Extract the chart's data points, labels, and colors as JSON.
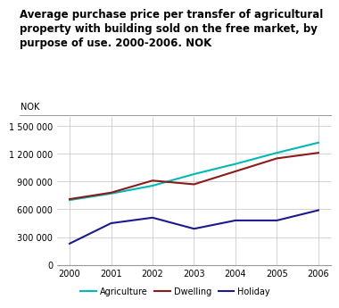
{
  "title": "Average purchase price per transfer of agricultural\nproperty with building sold on the free market, by\npurpose of use. 2000-2006. NOK",
  "ylabel": "NOK",
  "years": [
    2000,
    2001,
    2002,
    2003,
    2004,
    2005,
    2006
  ],
  "agriculture": [
    700000,
    770000,
    855000,
    980000,
    1090000,
    1210000,
    1320000
  ],
  "dwelling": [
    710000,
    780000,
    910000,
    870000,
    1010000,
    1150000,
    1210000
  ],
  "holiday": [
    230000,
    450000,
    510000,
    390000,
    480000,
    480000,
    590000
  ],
  "agriculture_color": "#00B8B8",
  "dwelling_color": "#8B1A1A",
  "holiday_color": "#1A1A8B",
  "ylim": [
    0,
    1600000
  ],
  "yticks": [
    0,
    300000,
    600000,
    900000,
    1200000,
    1500000
  ],
  "ytick_labels": [
    "0",
    "300 000",
    "600 000",
    "900 000",
    "1 200 000",
    "1 500 000"
  ],
  "background_color": "#ffffff",
  "grid_color": "#cccccc",
  "title_fontsize": 8.5,
  "axis_fontsize": 7,
  "legend_labels": [
    "Agriculture",
    "Dwelling",
    "Holiday"
  ]
}
